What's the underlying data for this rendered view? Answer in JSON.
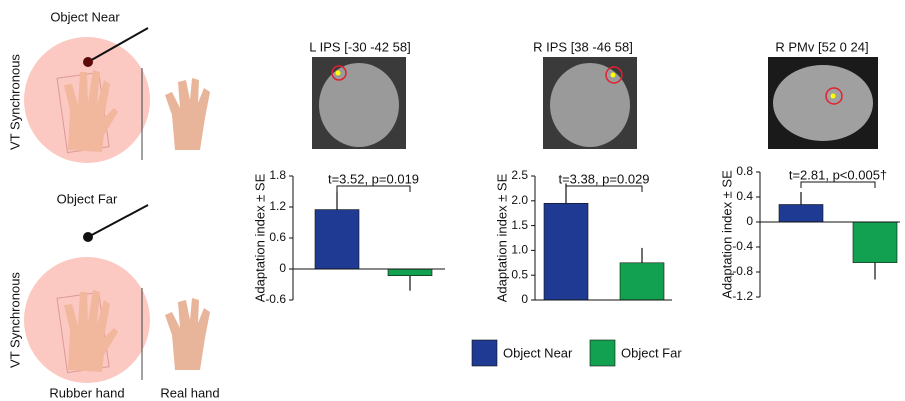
{
  "illustration": {
    "near_label": "Object Near",
    "near_condition": "VT Synchronous",
    "far_label": "Object Far",
    "far_condition": "VT Synchronous",
    "rubber_hand": "Rubber hand",
    "real_hand": "Real hand"
  },
  "legend": {
    "items": [
      {
        "name": "Object Near",
        "color": "#1f3a93"
      },
      {
        "name": "Object Far",
        "color": "#12a150"
      }
    ]
  },
  "chart_data": [
    {
      "type": "bar",
      "title": "L IPS [-30 -42 58]",
      "ylabel": "Adaptation index ± SE",
      "annotation": "t=3.52, p=0.019",
      "values": [
        1.15,
        -0.13
      ],
      "errors": [
        0.35,
        0.29
      ],
      "ylim": [
        -0.6,
        1.8
      ],
      "yticks": [
        -0.6,
        0,
        0.6,
        1.2,
        1.8
      ]
    },
    {
      "type": "bar",
      "title": "R IPS [38 -46 58]",
      "ylabel": "Adaptation index ± SE",
      "annotation": "t=3.38, p=0.029",
      "values": [
        1.95,
        0.75
      ],
      "errors": [
        0.4,
        0.3
      ],
      "ylim": [
        0,
        2.5
      ],
      "yticks": [
        0,
        0.5,
        {
          "value": 1,
          "label": "1.0"
        },
        1.5,
        {
          "value": 2,
          "label": "2.0"
        },
        2.5
      ]
    },
    {
      "type": "bar",
      "title": "R PMv [52 0 24]",
      "ylabel": "Adaptation index ± SE",
      "annotation": "t=2.81, p<0.005†",
      "values": [
        0.28,
        -0.65
      ],
      "errors": [
        0.2,
        0.27
      ],
      "ylim": [
        -1.2,
        0.8
      ],
      "yticks": [
        -1.2,
        -0.8,
        -0.4,
        0,
        0.4,
        0.8
      ]
    }
  ]
}
